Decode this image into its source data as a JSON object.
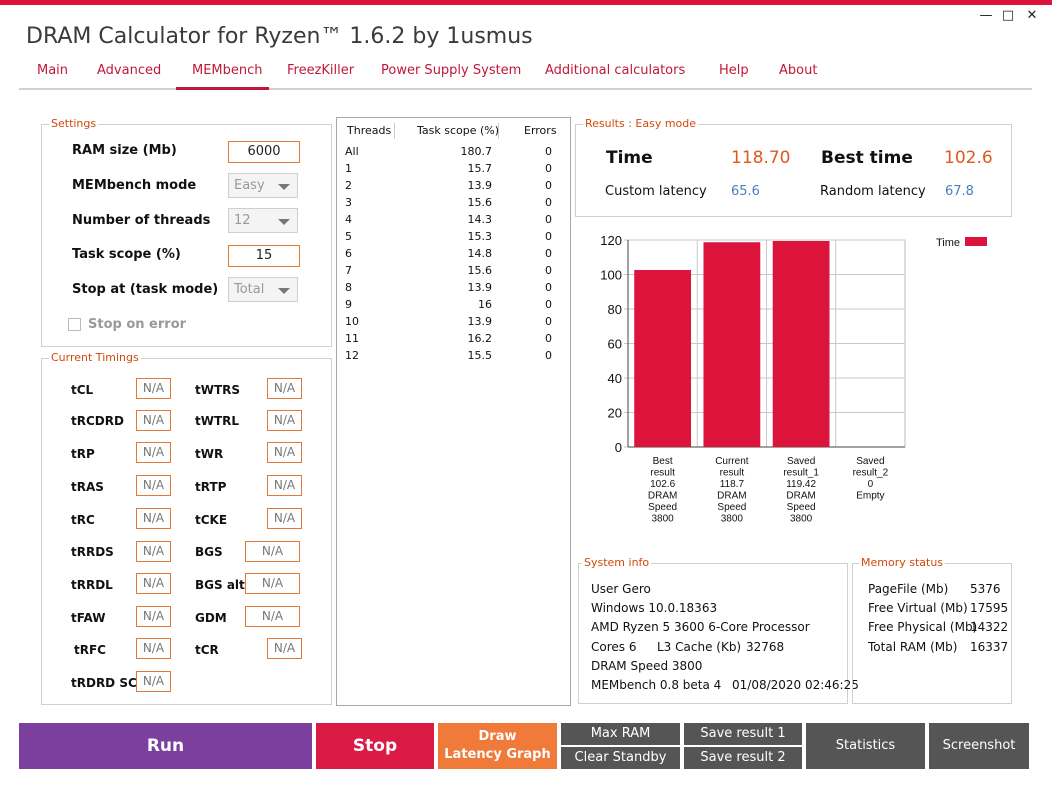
{
  "window": {
    "title": "DRAM Calculator for Ryzen™ 1.6.2 by 1usmus",
    "minimize": "—",
    "maximize": "□",
    "close": "✕"
  },
  "nav": {
    "tabs": [
      "Main",
      "Advanced",
      "MEMbench",
      "FreezKiller",
      "Power Supply System",
      "Additional calculators",
      "Help",
      "About"
    ],
    "active": "MEMbench"
  },
  "settings": {
    "title": "Settings",
    "ram_size_label": "RAM size (Mb)",
    "ram_size_value": "6000",
    "mode_label": "MEMbench mode",
    "mode_value": "Easy",
    "threads_label": "Number of threads",
    "threads_value": "12",
    "task_scope_label": "Task scope (%)",
    "task_scope_value": "15",
    "stop_at_label": "Stop at (task mode)",
    "stop_at_value": "Total",
    "stop_on_error_label": "Stop on error"
  },
  "timings": {
    "title": "Current Timings",
    "left": [
      {
        "label": "tCL",
        "value": "N/A"
      },
      {
        "label": "tRCDRD",
        "value": "N/A"
      },
      {
        "label": "tRP",
        "value": "N/A"
      },
      {
        "label": "tRAS",
        "value": "N/A"
      },
      {
        "label": "tRC",
        "value": "N/A"
      },
      {
        "label": "tRRDS",
        "value": "N/A"
      },
      {
        "label": "tRRDL",
        "value": "N/A"
      },
      {
        "label": "tFAW",
        "value": "N/A"
      },
      {
        "label": "tRFC",
        "value": "N/A"
      },
      {
        "label": "tRDRD SCL",
        "value": "N/A"
      }
    ],
    "right": [
      {
        "label": "tWTRS",
        "value": "N/A"
      },
      {
        "label": "tWTRL",
        "value": "N/A"
      },
      {
        "label": "tWR",
        "value": "N/A"
      },
      {
        "label": "tRTP",
        "value": "N/A"
      },
      {
        "label": "tCKE",
        "value": "N/A"
      },
      {
        "label": "BGS",
        "value": "N/A"
      },
      {
        "label": "BGS alt",
        "value": "N/A"
      },
      {
        "label": "GDM",
        "value": "N/A"
      },
      {
        "label": "tCR",
        "value": "N/A"
      }
    ]
  },
  "threads_table": {
    "headers": [
      "Threads",
      "Task scope (%)",
      "Errors"
    ],
    "rows": [
      [
        "All",
        "180.7",
        "0"
      ],
      [
        "1",
        "15.7",
        "0"
      ],
      [
        "2",
        "13.9",
        "0"
      ],
      [
        "3",
        "15.6",
        "0"
      ],
      [
        "4",
        "14.3",
        "0"
      ],
      [
        "5",
        "15.3",
        "0"
      ],
      [
        "6",
        "14.8",
        "0"
      ],
      [
        "7",
        "15.6",
        "0"
      ],
      [
        "8",
        "13.9",
        "0"
      ],
      [
        "9",
        "16",
        "0"
      ],
      [
        "10",
        "13.9",
        "0"
      ],
      [
        "11",
        "16.2",
        "0"
      ],
      [
        "12",
        "15.5",
        "0"
      ]
    ]
  },
  "results": {
    "title": "Results : Easy mode",
    "time_label": "Time",
    "time_value": "118.70",
    "best_label": "Best time",
    "best_value": "102.6",
    "custom_label": "Custom latency",
    "custom_value": "65.6",
    "random_label": "Random latency",
    "random_value": "67.8"
  },
  "chart_data": {
    "type": "bar",
    "legend": "Time",
    "legend_position": "top-right",
    "bar_color": "#dc143c",
    "ylim": [
      0,
      120
    ],
    "yticks": [
      "0",
      "20",
      "40",
      "60",
      "80",
      "100",
      "120"
    ],
    "categories": [
      [
        "Best",
        "result",
        "102.6",
        "DRAM",
        "Speed",
        "3800"
      ],
      [
        "Current",
        "result",
        "118.7",
        "DRAM",
        "Speed",
        "3800"
      ],
      [
        "Saved",
        "result_1",
        "119.42",
        "DRAM",
        "Speed",
        "3800"
      ],
      [
        "Saved",
        "result_2",
        "0",
        "Empty"
      ]
    ],
    "values": [
      102.6,
      118.7,
      119.42,
      0
    ],
    "grid": true
  },
  "system_info": {
    "title": "System info",
    "user": "User Gero",
    "os": "Windows 10.0.18363",
    "cpu": "AMD Ryzen 5 3600 6-Core Processor",
    "cores": "Cores 6",
    "l3": "L3 Cache (Kb)",
    "l3_value": "32768",
    "dram_speed": "DRAM Speed 3800",
    "membench": "MEMbench 0.8 beta 4",
    "datetime": "01/08/2020 02:46:25"
  },
  "memory_status": {
    "title": "Memory status",
    "rows": [
      {
        "label": "PageFile (Mb)",
        "value": "5376"
      },
      {
        "label": "Free Virtual (Mb)",
        "value": "17595"
      },
      {
        "label": "Free Physical (Mb)",
        "value": "14322"
      },
      {
        "label": "Total RAM (Mb)",
        "value": "16337"
      }
    ]
  },
  "buttons": {
    "run": "Run",
    "stop": "Stop",
    "draw_line1": "Draw",
    "draw_line2": "Latency Graph",
    "max_ram": "Max RAM",
    "clear_standby": "Clear Standby",
    "save1": "Save result 1",
    "save2": "Save result 2",
    "statistics": "Statistics",
    "screenshot": "Screenshot"
  },
  "colors": {
    "accent": "#dc143c",
    "run": "#7b3f9e",
    "stop": "#dc1a46",
    "draw": "#f07a3a",
    "gray_button": "#555555",
    "value_orange": "#e0581f",
    "value_blue": "#4a7fc0"
  }
}
